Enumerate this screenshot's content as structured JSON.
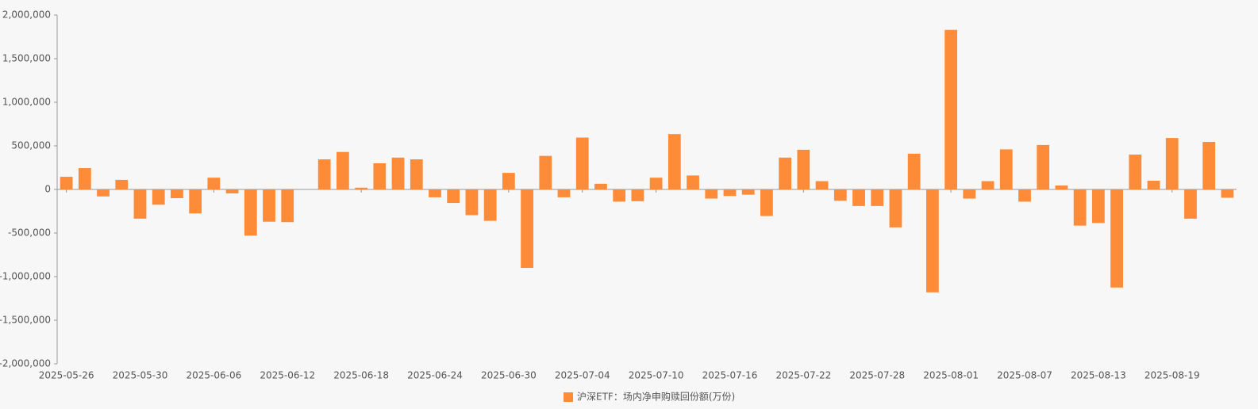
{
  "chart_data": {
    "type": "bar",
    "categories": [
      "2025-05-26",
      null,
      null,
      null,
      "2025-05-30",
      null,
      null,
      null,
      "2025-06-06",
      null,
      null,
      null,
      "2025-06-12",
      null,
      null,
      null,
      "2025-06-18",
      null,
      null,
      null,
      "2025-06-24",
      null,
      null,
      null,
      "2025-06-30",
      null,
      null,
      null,
      "2025-07-04",
      null,
      null,
      null,
      "2025-07-10",
      null,
      null,
      null,
      "2025-07-16",
      null,
      null,
      null,
      "2025-07-22",
      null,
      null,
      null,
      "2025-07-28",
      null,
      null,
      null,
      "2025-08-01",
      null,
      null,
      null,
      "2025-08-07",
      null,
      null,
      null,
      "2025-08-13",
      null,
      null,
      null,
      "2025-08-19",
      null,
      null,
      null
    ],
    "series": [
      {
        "name": "沪深ETF：场内净申购赎回份额(万份)",
        "color": "#fe8b38",
        "values": [
          145000,
          245000,
          -80000,
          110000,
          -335000,
          -175000,
          -100000,
          -275000,
          135000,
          -45000,
          -530000,
          -370000,
          -375000,
          null,
          345000,
          430000,
          20000,
          300000,
          365000,
          345000,
          -90000,
          -155000,
          -295000,
          -360000,
          190000,
          -900000,
          385000,
          -90000,
          595000,
          65000,
          -140000,
          -135000,
          135000,
          635000,
          160000,
          -105000,
          -75000,
          -60000,
          -305000,
          365000,
          455000,
          95000,
          -130000,
          -190000,
          -190000,
          -435000,
          410000,
          -1180000,
          1830000,
          -105000,
          95000,
          460000,
          -140000,
          510000,
          45000,
          -415000,
          -385000,
          -1125000,
          400000,
          100000,
          590000,
          -335000,
          545000,
          -95000
        ]
      }
    ],
    "ylim": [
      -2000000,
      2000000
    ],
    "yticks": [
      {
        "value": -2000000,
        "label": "-2,000,000"
      },
      {
        "value": -1500000,
        "label": "-1,500,000"
      },
      {
        "value": -1000000,
        "label": "-1,000,000"
      },
      {
        "value": -500000,
        "label": "-500,000"
      },
      0,
      {
        "value": 500000,
        "label": "500,000"
      },
      {
        "value": 1000000,
        "label": "1,000,000"
      },
      {
        "value": 1500000,
        "label": "1,500,000"
      },
      {
        "value": 2000000,
        "label": "2,000,000"
      }
    ],
    "grid": false
  }
}
